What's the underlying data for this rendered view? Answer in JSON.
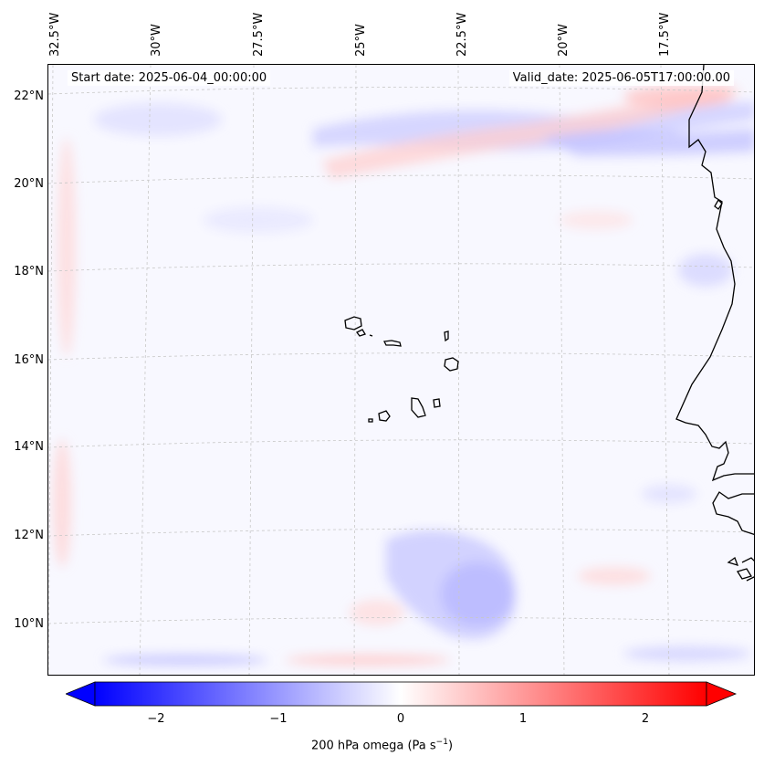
{
  "map": {
    "start_label": "Start date: 2025-06-04_00:00:00",
    "valid_label": "Valid_date: 2025-06-05T17:00:00.00",
    "lon_labels": [
      "32.5°W",
      "30°W",
      "27.5°W",
      "25°W",
      "22.5°W",
      "20°W",
      "17.5°W"
    ],
    "lat_labels": [
      "22°N",
      "20°N",
      "18°N",
      "16°N",
      "14°N",
      "12°N",
      "10°N"
    ],
    "colors": {
      "negative": "#0000ff",
      "positive": "#ff0000",
      "background": "#f8f8ff",
      "coast": "#000000",
      "grid": "#c8c8c8"
    }
  },
  "colorbar": {
    "ticks": [
      "−2",
      "−1",
      "0",
      "1",
      "2"
    ],
    "tick_values": [
      -2,
      -1,
      0,
      1,
      2
    ],
    "range": [
      -2.6,
      2.6
    ],
    "label_main": "200 hPa omega (Pa s",
    "label_sup": "−1",
    "label_end": ")"
  }
}
